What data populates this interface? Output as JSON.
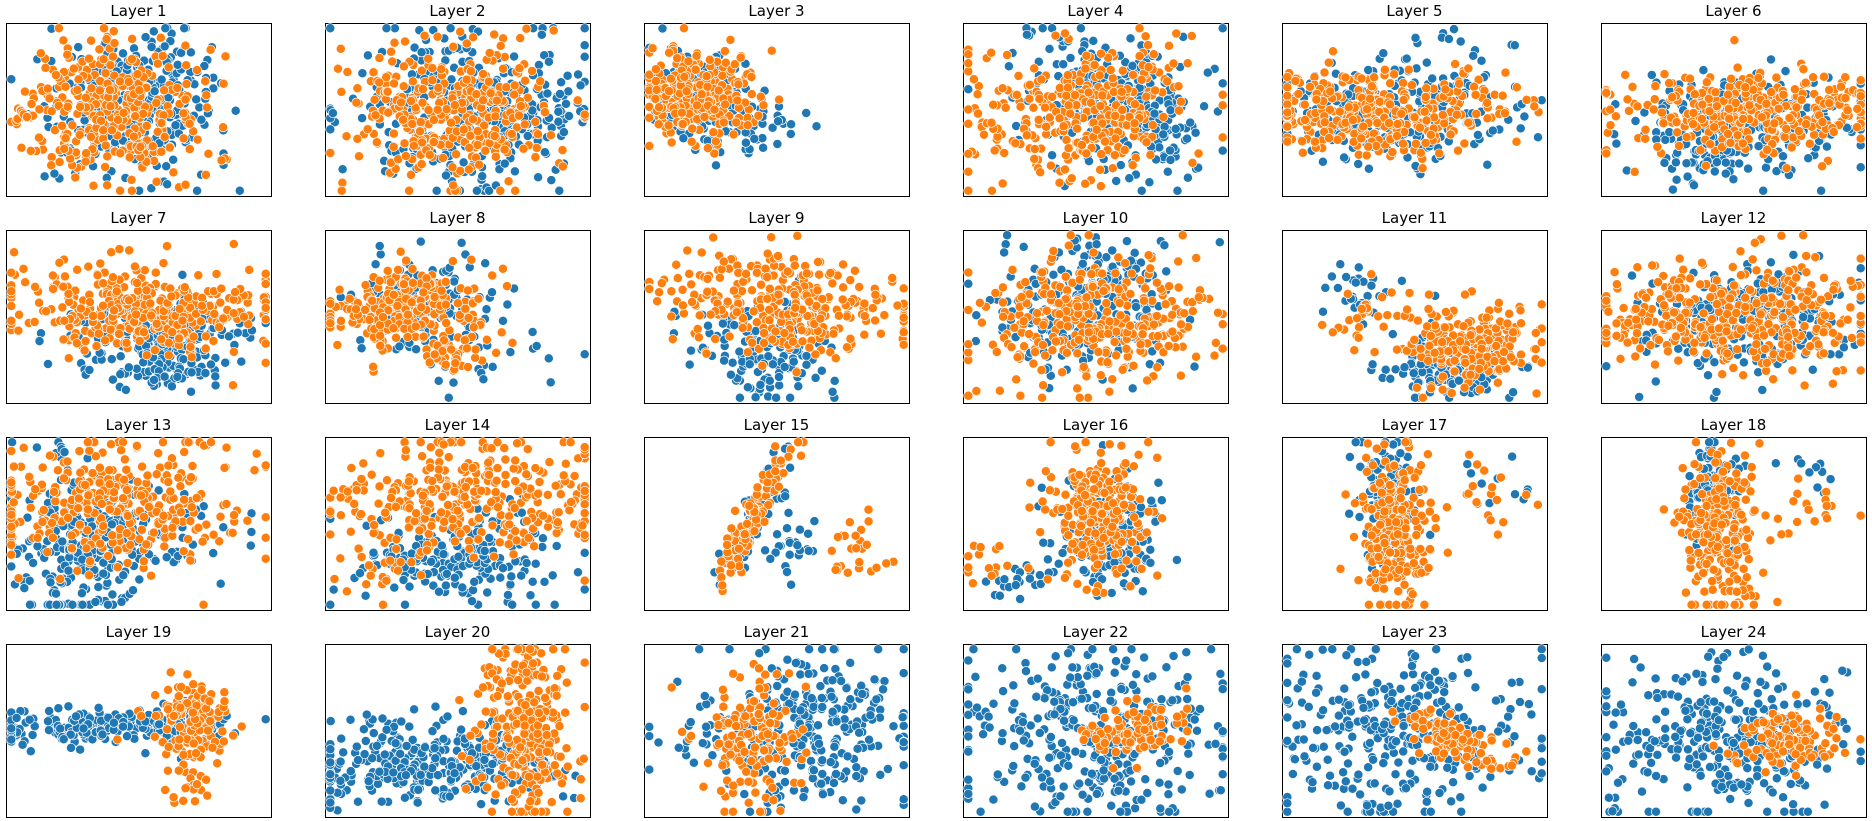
{
  "colors": {
    "series_a": "#1f77b4",
    "series_b": "#ff7f0e",
    "marker_edge": "#ffffff",
    "frame": "#000000"
  },
  "chart_data": {
    "type": "scatter",
    "layout": {
      "rows": 4,
      "cols": 6
    },
    "axes_visible": false,
    "grid": false,
    "legend": "none",
    "series_names": [],
    "panels": [
      {
        "title": "Layer 1"
      },
      {
        "title": "Layer 2"
      },
      {
        "title": "Layer 3"
      },
      {
        "title": "Layer 4"
      },
      {
        "title": "Layer 5"
      },
      {
        "title": "Layer 6"
      },
      {
        "title": "Layer 7"
      },
      {
        "title": "Layer 8"
      },
      {
        "title": "Layer 9"
      },
      {
        "title": "Layer 10"
      },
      {
        "title": "Layer 11"
      },
      {
        "title": "Layer 12"
      },
      {
        "title": "Layer 13"
      },
      {
        "title": "Layer 14"
      },
      {
        "title": "Layer 15"
      },
      {
        "title": "Layer 16"
      },
      {
        "title": "Layer 17"
      },
      {
        "title": "Layer 18"
      },
      {
        "title": "Layer 19"
      },
      {
        "title": "Layer 20"
      },
      {
        "title": "Layer 21"
      },
      {
        "title": "Layer 22"
      },
      {
        "title": "Layer 23"
      },
      {
        "title": "Layer 24"
      }
    ]
  }
}
